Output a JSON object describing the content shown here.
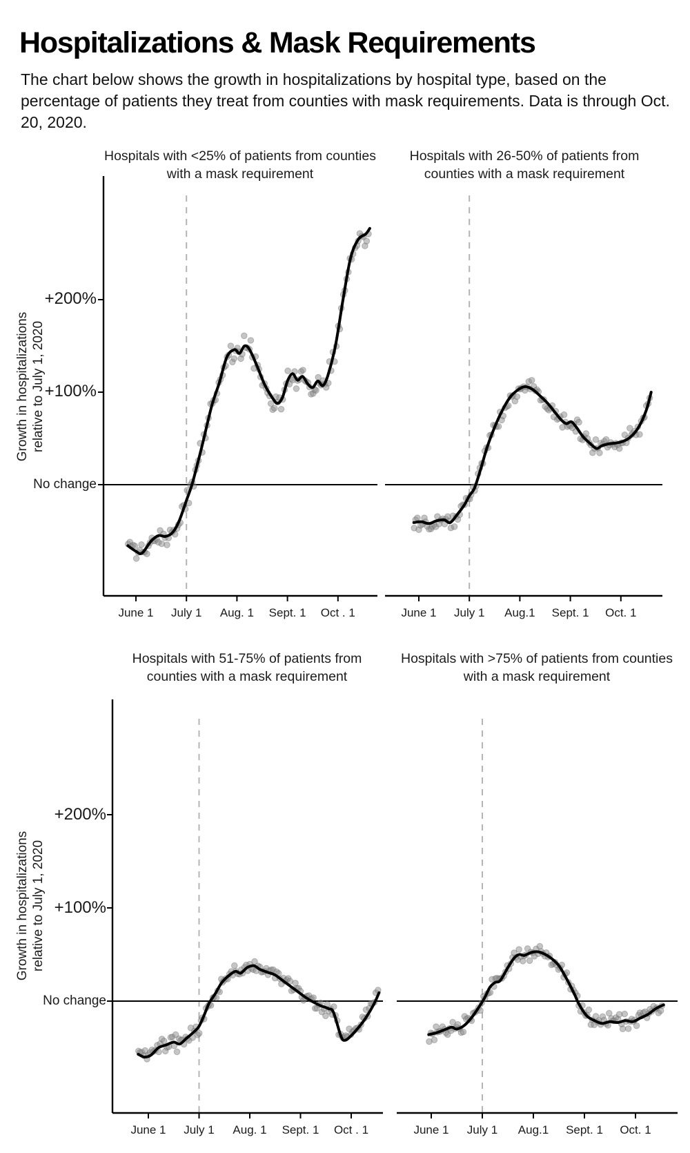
{
  "page": {
    "background": "#ffffff"
  },
  "header": {
    "title": "Hospitalizations & Mask Requirements",
    "subtitle": "The chart below shows the growth in hospitalizations by hospital type, based on the percentage of patients they treat from counties with mask requirements. Data is through Oct. 20, 2020."
  },
  "axis": {
    "y_label_line1": "Growth in hospitalizations",
    "y_label_line2": "relative to July 1, 2020",
    "y_ticks": [
      {
        "label": "+200%",
        "value": 200
      },
      {
        "label": "+100%",
        "value": 100
      },
      {
        "label": "No change",
        "value": 0
      }
    ]
  },
  "style": {
    "trend_color": "#000000",
    "scatter_color": "#8c8c8c",
    "scatter_edge": "#5a5a5a",
    "dashed_line_color": "#b4b4b4",
    "axis_color": "#000000",
    "tick_text_color": "#1b1b1b"
  },
  "chart_data": [
    {
      "type": "scatter",
      "title": "Hospitals with <25% of patients from counties with a mask requirement",
      "x_axis": {
        "tick_labels": [
          "June 1",
          "July 1",
          "Aug. 1",
          "Sept. 1",
          "Oct . 1"
        ],
        "tick_values": [
          0,
          1,
          2,
          3,
          4
        ],
        "unit": "months since June 1, 2020"
      },
      "y_axis": {
        "tick_labels": [
          "+200%",
          "+100%",
          "No change"
        ],
        "tick_values": [
          200,
          100,
          0
        ],
        "range": [
          -120,
          332
        ]
      },
      "reference_lines": {
        "vertical_dashed_at_month": 1,
        "vertical_dashed_label": "July 1",
        "horizontal_at": 0
      },
      "domain": [
        -0.16,
        4.63
      ],
      "trend": [
        [
          -0.16,
          -66
        ],
        [
          0,
          -72
        ],
        [
          0.12,
          -74
        ],
        [
          0.3,
          -61
        ],
        [
          0.45,
          -55
        ],
        [
          0.58,
          -56
        ],
        [
          0.72,
          -52
        ],
        [
          0.85,
          -40
        ],
        [
          1,
          -17
        ],
        [
          1.12,
          2
        ],
        [
          1.3,
          40
        ],
        [
          1.5,
          85
        ],
        [
          1.65,
          110
        ],
        [
          1.8,
          138
        ],
        [
          1.95,
          146
        ],
        [
          2.05,
          142
        ],
        [
          2.15,
          150
        ],
        [
          2.25,
          146
        ],
        [
          2.4,
          128
        ],
        [
          2.55,
          108
        ],
        [
          2.7,
          94
        ],
        [
          2.8,
          88
        ],
        [
          2.9,
          94
        ],
        [
          3,
          112
        ],
        [
          3.1,
          120
        ],
        [
          3.2,
          113
        ],
        [
          3.3,
          117
        ],
        [
          3.4,
          109
        ],
        [
          3.5,
          105
        ],
        [
          3.6,
          112
        ],
        [
          3.7,
          107
        ],
        [
          3.8,
          118
        ],
        [
          3.95,
          150
        ],
        [
          4.1,
          200
        ],
        [
          4.25,
          245
        ],
        [
          4.4,
          265
        ],
        [
          4.55,
          271
        ],
        [
          4.63,
          277
        ]
      ],
      "scatter_seed": 11,
      "scatter_noise": 14,
      "points_per_month": 30
    },
    {
      "type": "scatter",
      "title": "Hospitals with 26-50% of patients from counties with a mask requirement",
      "x_axis": {
        "tick_labels": [
          "June 1",
          "July 1",
          "Aug.1",
          "Sept. 1",
          "Oct. 1"
        ],
        "tick_values": [
          0,
          1,
          2,
          3,
          4
        ],
        "unit": "months since June 1, 2020"
      },
      "y_axis": {
        "tick_labels": [
          "+200%",
          "+100%",
          "No change"
        ],
        "tick_values": [
          200,
          100,
          0
        ],
        "range": [
          -120,
          332
        ]
      },
      "reference_lines": {
        "vertical_dashed_at_month": 1,
        "vertical_dashed_label": "July 1",
        "horizontal_at": 0
      },
      "domain": [
        -0.1,
        4.6
      ],
      "trend": [
        [
          -0.1,
          -41
        ],
        [
          0.05,
          -40
        ],
        [
          0.2,
          -42
        ],
        [
          0.35,
          -39
        ],
        [
          0.5,
          -38
        ],
        [
          0.62,
          -41
        ],
        [
          0.75,
          -33
        ],
        [
          0.9,
          -22
        ],
        [
          1,
          -12
        ],
        [
          1.1,
          -4
        ],
        [
          1.22,
          16
        ],
        [
          1.35,
          40
        ],
        [
          1.5,
          62
        ],
        [
          1.65,
          80
        ],
        [
          1.8,
          94
        ],
        [
          1.95,
          102
        ],
        [
          2.1,
          106
        ],
        [
          2.25,
          103
        ],
        [
          2.4,
          96
        ],
        [
          2.55,
          88
        ],
        [
          2.7,
          78
        ],
        [
          2.82,
          70
        ],
        [
          2.92,
          66
        ],
        [
          3.02,
          68
        ],
        [
          3.12,
          62
        ],
        [
          3.25,
          52
        ],
        [
          3.4,
          44
        ],
        [
          3.52,
          39
        ],
        [
          3.62,
          42
        ],
        [
          3.75,
          44
        ],
        [
          3.9,
          45
        ],
        [
          4.05,
          47
        ],
        [
          4.2,
          52
        ],
        [
          4.35,
          62
        ],
        [
          4.5,
          80
        ],
        [
          4.6,
          100
        ]
      ],
      "scatter_seed": 22,
      "scatter_noise": 11,
      "points_per_month": 30
    },
    {
      "type": "scatter",
      "title": "Hospitals with 51-75% of patients from counties with a mask requirement",
      "x_axis": {
        "tick_labels": [
          "June 1",
          "July 1",
          "Aug. 1",
          "Sept. 1",
          "Oct . 1"
        ],
        "tick_values": [
          0,
          1,
          2,
          3,
          4
        ],
        "unit": "months since June 1, 2020"
      },
      "y_axis": {
        "tick_labels": [
          "+200%",
          "+100%",
          "No change"
        ],
        "tick_values": [
          200,
          100,
          0
        ],
        "range": [
          -120,
          324
        ]
      },
      "reference_lines": {
        "vertical_dashed_at_month": 1,
        "vertical_dashed_label": "July 1",
        "horizontal_at": 0
      },
      "domain": [
        -0.2,
        4.55
      ],
      "trend": [
        [
          -0.2,
          -57
        ],
        [
          -0.08,
          -60
        ],
        [
          0.05,
          -58
        ],
        [
          0.2,
          -50
        ],
        [
          0.35,
          -47
        ],
        [
          0.5,
          -44
        ],
        [
          0.62,
          -46
        ],
        [
          0.75,
          -40
        ],
        [
          0.9,
          -33
        ],
        [
          1,
          -27
        ],
        [
          1.1,
          -15
        ],
        [
          1.2,
          -2
        ],
        [
          1.32,
          8
        ],
        [
          1.45,
          20
        ],
        [
          1.6,
          28
        ],
        [
          1.72,
          32
        ],
        [
          1.82,
          30
        ],
        [
          1.95,
          36
        ],
        [
          2.08,
          38
        ],
        [
          2.2,
          34
        ],
        [
          2.35,
          31
        ],
        [
          2.5,
          28
        ],
        [
          2.65,
          22
        ],
        [
          2.8,
          16
        ],
        [
          2.95,
          10
        ],
        [
          3.1,
          4
        ],
        [
          3.25,
          -1
        ],
        [
          3.4,
          -5
        ],
        [
          3.55,
          -8
        ],
        [
          3.65,
          -12
        ],
        [
          3.8,
          -38
        ],
        [
          3.88,
          -42
        ],
        [
          4,
          -37
        ],
        [
          4.15,
          -28
        ],
        [
          4.3,
          -17
        ],
        [
          4.45,
          -3
        ],
        [
          4.55,
          9
        ]
      ],
      "scatter_seed": 33,
      "scatter_noise": 10,
      "points_per_month": 30
    },
    {
      "type": "scatter",
      "title": "Hospitals with >75% of patients from counties with a mask requirement",
      "x_axis": {
        "tick_labels": [
          "June 1",
          "July 1",
          "Aug.1",
          "Sept. 1",
          "Oct. 1"
        ],
        "tick_values": [
          0,
          1,
          2,
          3,
          4
        ],
        "unit": "months since June 1, 2020"
      },
      "y_axis": {
        "tick_labels": [
          "+200%",
          "+100%",
          "No change"
        ],
        "tick_values": [
          200,
          100,
          0
        ],
        "range": [
          -120,
          324
        ]
      },
      "reference_lines": {
        "vertical_dashed_at_month": 1,
        "vertical_dashed_label": "July 1",
        "horizontal_at": 0
      },
      "domain": [
        -0.05,
        4.55
      ],
      "trend": [
        [
          -0.05,
          -36
        ],
        [
          0.1,
          -34
        ],
        [
          0.25,
          -31
        ],
        [
          0.4,
          -28
        ],
        [
          0.5,
          -30
        ],
        [
          0.65,
          -26
        ],
        [
          0.8,
          -17
        ],
        [
          0.95,
          -5
        ],
        [
          1.05,
          4
        ],
        [
          1.15,
          15
        ],
        [
          1.25,
          20
        ],
        [
          1.35,
          22
        ],
        [
          1.5,
          36
        ],
        [
          1.62,
          46
        ],
        [
          1.72,
          50
        ],
        [
          1.82,
          49
        ],
        [
          1.95,
          52
        ],
        [
          2.08,
          53
        ],
        [
          2.2,
          51
        ],
        [
          2.35,
          46
        ],
        [
          2.5,
          38
        ],
        [
          2.65,
          24
        ],
        [
          2.8,
          8
        ],
        [
          2.9,
          -4
        ],
        [
          3.05,
          -16
        ],
        [
          3.2,
          -21
        ],
        [
          3.35,
          -24
        ],
        [
          3.5,
          -22
        ],
        [
          3.65,
          -23
        ],
        [
          3.8,
          -21
        ],
        [
          3.95,
          -22
        ],
        [
          4.1,
          -18
        ],
        [
          4.25,
          -14
        ],
        [
          4.4,
          -8
        ],
        [
          4.55,
          -4
        ]
      ],
      "scatter_seed": 44,
      "scatter_noise": 10,
      "points_per_month": 30
    }
  ]
}
